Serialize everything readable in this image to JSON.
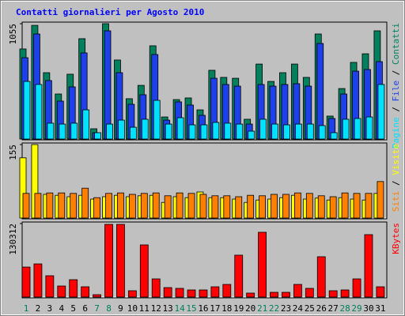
{
  "chart_data": [
    {
      "type": "bar",
      "title": "Contatti giornalieri per Agosto 2010",
      "ylim": [
        0,
        1055
      ],
      "yticks": [
        1055
      ],
      "legend_separator": " / ",
      "series": [
        {
          "name": "Pagine",
          "color": "#00e0ff",
          "values": [
            527,
            499,
            145,
            137,
            145,
            267,
            58,
            137,
            173,
            108,
            181,
            354,
            137,
            195,
            130,
            130,
            152,
            145,
            137,
            72,
            181,
            137,
            130,
            137,
            137,
            123,
            58,
            181,
            188,
            202,
            499
          ]
        },
        {
          "name": "File",
          "color": "#1e40e8",
          "values": [
            744,
            961,
            535,
            347,
            477,
            788,
            58,
            990,
            607,
            318,
            405,
            773,
            173,
            340,
            311,
            217,
            556,
            499,
            484,
            137,
            499,
            484,
            499,
            506,
            484,
            874,
            188,
            412,
            621,
            636,
            708
          ]
        },
        {
          "name": "Contatti",
          "color": "#00805c",
          "values": [
            824,
            1040,
            607,
            412,
            593,
            918,
            94,
            1055,
            723,
            369,
            491,
            853,
            202,
            361,
            376,
            267,
            629,
            564,
            556,
            181,
            686,
            527,
            607,
            686,
            564,
            961,
            210,
            462,
            701,
            780,
            990
          ]
        }
      ]
    },
    {
      "type": "bar",
      "ylim": [
        0,
        155
      ],
      "yticks": [
        155
      ],
      "legend_separator": " / ",
      "series": [
        {
          "name": "Siti",
          "color": "#ff8000",
          "values": [
            52,
            52,
            53,
            53,
            52,
            63,
            43,
            52,
            53,
            50,
            52,
            53,
            47,
            53,
            52,
            50,
            47,
            47,
            45,
            48,
            47,
            50,
            50,
            53,
            52,
            47,
            45,
            53,
            52,
            52,
            77
          ]
        },
        {
          "name": "Visite",
          "color": "#ffff00",
          "values": [
            127,
            155,
            50,
            48,
            45,
            48,
            40,
            45,
            48,
            45,
            47,
            48,
            33,
            45,
            43,
            55,
            43,
            43,
            40,
            33,
            38,
            40,
            43,
            48,
            40,
            42,
            38,
            43,
            40,
            38,
            52
          ]
        }
      ]
    },
    {
      "type": "bar",
      "ylim": [
        0,
        130312
      ],
      "yticks": [
        130312
      ],
      "categories": [
        1,
        2,
        3,
        4,
        5,
        6,
        7,
        8,
        9,
        10,
        11,
        12,
        13,
        14,
        15,
        16,
        17,
        18,
        19,
        20,
        21,
        22,
        23,
        24,
        25,
        26,
        27,
        28,
        29,
        30,
        31
      ],
      "category_colors": [
        "#00805c",
        "#000000",
        "#000000",
        "#000000",
        "#000000",
        "#000000",
        "#00805c",
        "#00805c",
        "#000000",
        "#000000",
        "#000000",
        "#000000",
        "#000000",
        "#00805c",
        "#00805c",
        "#000000",
        "#000000",
        "#000000",
        "#000000",
        "#000000",
        "#00805c",
        "#00805c",
        "#000000",
        "#000000",
        "#000000",
        "#000000",
        "#000000",
        "#00805c",
        "#00805c",
        "#000000",
        "#000000"
      ],
      "series": [
        {
          "name": "KBytes",
          "color": "#ff0000",
          "values": [
            53200,
            58800,
            37800,
            19600,
            30800,
            18200,
            4200,
            128900,
            128900,
            11200,
            92500,
            32200,
            16800,
            15400,
            12600,
            12600,
            18200,
            22400,
            74300,
            7000,
            114900,
            8400,
            8400,
            22400,
            15400,
            71500,
            11200,
            12600,
            32200,
            110700,
            18200
          ]
        }
      ]
    }
  ]
}
